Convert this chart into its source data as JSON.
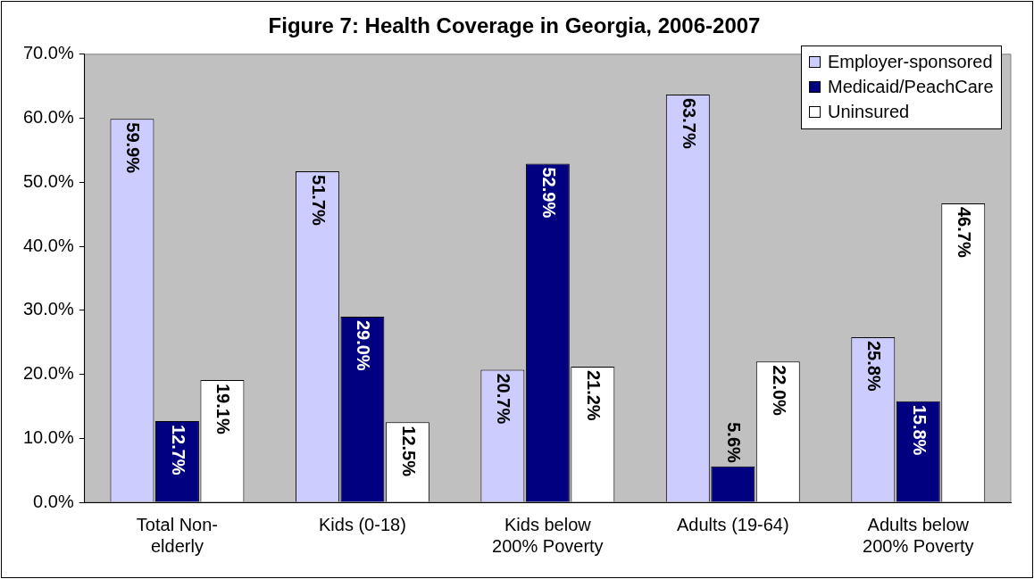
{
  "chart_data": {
    "type": "bar",
    "title": "Figure 7: Health Coverage in Georgia, 2006-2007",
    "categories": [
      "Total Non-elderly",
      "Kids (0-18)",
      "Kids below 200% Poverty",
      "Adults (19-64)",
      "Adults below 200% Poverty"
    ],
    "series": [
      {
        "name": "Employer-sponsored",
        "color": "#ccccff",
        "values": [
          59.9,
          51.7,
          20.7,
          63.7,
          25.8
        ]
      },
      {
        "name": "Medicaid/PeachCare",
        "color": "#000080",
        "values": [
          12.7,
          29.0,
          52.9,
          5.6,
          15.8
        ]
      },
      {
        "name": "Uninsured",
        "color": "#ffffff",
        "values": [
          19.1,
          12.5,
          21.2,
          22.0,
          46.7
        ]
      }
    ],
    "ylim": [
      0,
      70
    ],
    "yticks": [
      {
        "value": 0,
        "label": "0.0%"
      },
      {
        "value": 10,
        "label": "10.0%"
      },
      {
        "value": 20,
        "label": "20.0%"
      },
      {
        "value": 30,
        "label": "30.0%"
      },
      {
        "value": 40,
        "label": "40.0%"
      },
      {
        "value": 50,
        "label": "50.0%"
      },
      {
        "value": 60,
        "label": "60.0%"
      },
      {
        "value": 70,
        "label": "70.0%"
      }
    ],
    "value_labels": [
      [
        "59.9%",
        "51.7%",
        "20.7%",
        "63.7%",
        "25.8%"
      ],
      [
        "12.7%",
        "29.0%",
        "52.9%",
        "5.6%",
        "15.8%"
      ],
      [
        "19.1%",
        "12.5%",
        "21.2%",
        "22.0%",
        "46.7%"
      ]
    ],
    "grid": false,
    "legend": "top right"
  }
}
